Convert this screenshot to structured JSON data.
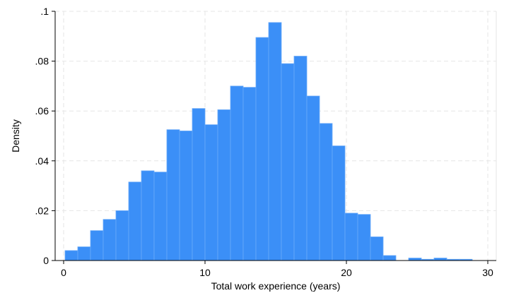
{
  "chart_data": {
    "type": "bar",
    "title": "",
    "xlabel": "Total work experience (years)",
    "ylabel": "Density",
    "xlim": [
      -0.6,
      30.6
    ],
    "ylim": [
      0,
      0.1
    ],
    "bin_width": 0.9,
    "bins": [
      {
        "x0": 0.1,
        "x1": 1.0,
        "value": 0.004
      },
      {
        "x0": 1.0,
        "x1": 1.9,
        "value": 0.0055
      },
      {
        "x0": 1.9,
        "x1": 2.8,
        "value": 0.012
      },
      {
        "x0": 2.8,
        "x1": 3.7,
        "value": 0.0165
      },
      {
        "x0": 3.7,
        "x1": 4.6,
        "value": 0.02
      },
      {
        "x0": 4.6,
        "x1": 5.5,
        "value": 0.0315
      },
      {
        "x0": 5.5,
        "x1": 6.4,
        "value": 0.036
      },
      {
        "x0": 6.4,
        "x1": 7.3,
        "value": 0.0355
      },
      {
        "x0": 7.3,
        "x1": 8.2,
        "value": 0.0525
      },
      {
        "x0": 8.2,
        "x1": 9.1,
        "value": 0.052
      },
      {
        "x0": 9.1,
        "x1": 10.0,
        "value": 0.061
      },
      {
        "x0": 10.0,
        "x1": 10.9,
        "value": 0.0545
      },
      {
        "x0": 10.9,
        "x1": 11.8,
        "value": 0.0605
      },
      {
        "x0": 11.8,
        "x1": 12.7,
        "value": 0.07
      },
      {
        "x0": 12.7,
        "x1": 13.6,
        "value": 0.0695
      },
      {
        "x0": 13.6,
        "x1": 14.5,
        "value": 0.0895
      },
      {
        "x0": 14.5,
        "x1": 15.4,
        "value": 0.0955
      },
      {
        "x0": 15.4,
        "x1": 16.3,
        "value": 0.079
      },
      {
        "x0": 16.3,
        "x1": 17.2,
        "value": 0.082
      },
      {
        "x0": 17.2,
        "x1": 18.1,
        "value": 0.066
      },
      {
        "x0": 18.1,
        "x1": 19.0,
        "value": 0.055
      },
      {
        "x0": 19.0,
        "x1": 19.9,
        "value": 0.046
      },
      {
        "x0": 19.9,
        "x1": 20.8,
        "value": 0.019
      },
      {
        "x0": 20.8,
        "x1": 21.7,
        "value": 0.0185
      },
      {
        "x0": 21.7,
        "x1": 22.6,
        "value": 0.0095
      },
      {
        "x0": 22.6,
        "x1": 23.5,
        "value": 0.002
      },
      {
        "x0": 23.5,
        "x1": 24.4,
        "value": 0.0
      },
      {
        "x0": 24.4,
        "x1": 25.3,
        "value": 0.001
      },
      {
        "x0": 25.3,
        "x1": 26.2,
        "value": 0.0005
      },
      {
        "x0": 26.2,
        "x1": 27.1,
        "value": 0.001
      },
      {
        "x0": 27.1,
        "x1": 28.0,
        "value": 0.0005
      },
      {
        "x0": 28.0,
        "x1": 28.9,
        "value": 0.0005
      }
    ],
    "xticks": [
      {
        "value": 0,
        "label": "0"
      },
      {
        "value": 10,
        "label": "10"
      },
      {
        "value": 20,
        "label": "20"
      },
      {
        "value": 30,
        "label": "30"
      }
    ],
    "yticks": [
      {
        "value": 0,
        "label": "0"
      },
      {
        "value": 0.02,
        "label": ".02"
      },
      {
        "value": 0.04,
        "label": ".04"
      },
      {
        "value": 0.06,
        "label": ".06"
      },
      {
        "value": 0.08,
        "label": ".08"
      },
      {
        "value": 0.1,
        "label": ".1"
      }
    ],
    "grid": true,
    "legend": "none",
    "colors": {
      "bar_fill": "#3b8ff7",
      "bar_edge": "#6aaaf8",
      "grid": "#e6e6e6",
      "axis": "#000000"
    }
  }
}
